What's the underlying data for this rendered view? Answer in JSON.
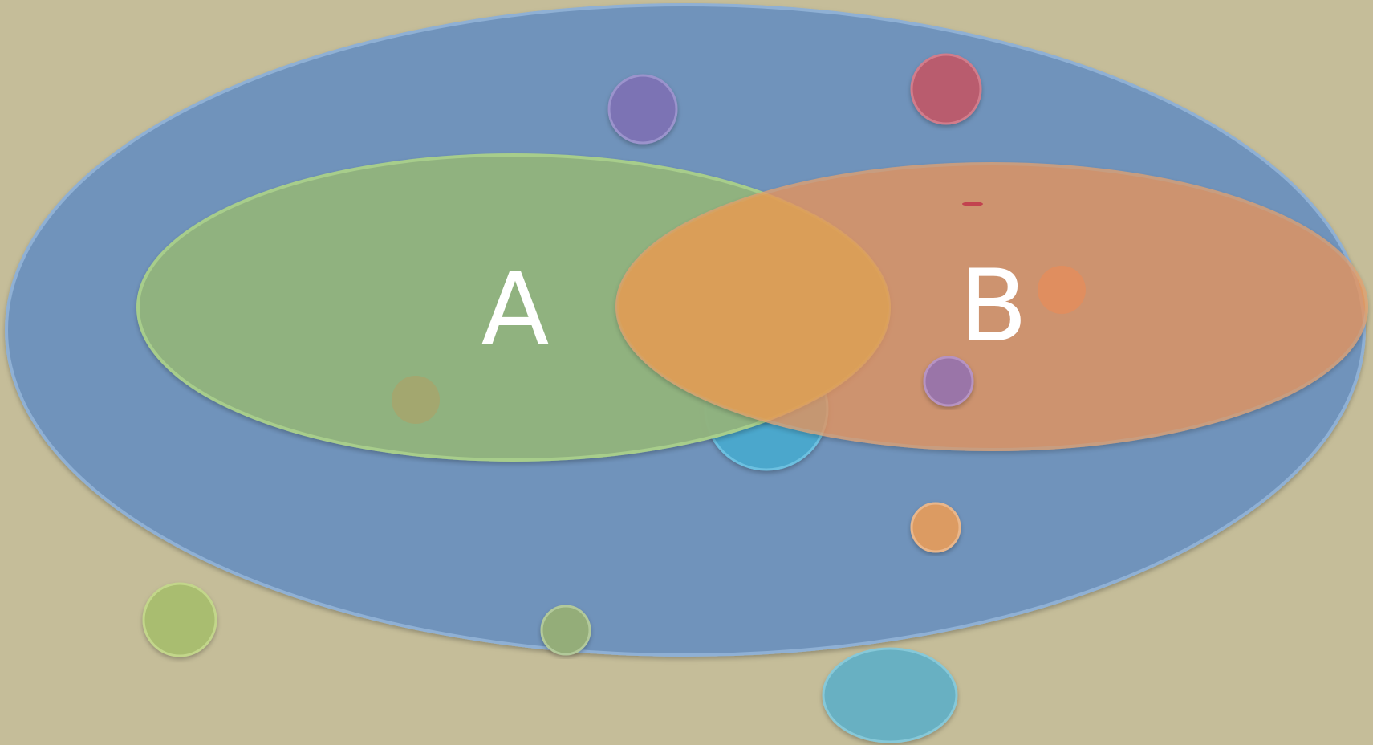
{
  "colors": {
    "background": "#c5bd99",
    "universe": "#6f93bb",
    "universe_edge": "#5a7fa8",
    "set_a": "#92b37e",
    "set_a_edge": "#a9cf8a",
    "set_b": "#e8935a",
    "set_b_edge": "#d9935f",
    "intersection": "#dea351"
  },
  "diagram": {
    "set_a_label": "A",
    "set_b_label": "B"
  },
  "decorations": [
    {
      "name": "purple-bubble-top",
      "color": "#7c73b4"
    },
    {
      "name": "red-bubble-top",
      "color": "#b95c6e"
    },
    {
      "name": "small-red-dot",
      "color": "#c2434f"
    },
    {
      "name": "orange-bubble-in-b",
      "color": "#e58c5a"
    },
    {
      "name": "olive-bubble-in-a",
      "color": "#a8a46b"
    },
    {
      "name": "blue-bubble-center",
      "color": "#4ba7cc"
    },
    {
      "name": "violet-bubble-in-b",
      "color": "#9a74a8"
    },
    {
      "name": "orange-bubble-lower",
      "color": "#dc9b62"
    },
    {
      "name": "lime-bubble-outside",
      "color": "#a9bd70"
    },
    {
      "name": "green-bubble-bottom",
      "color": "#94ad79"
    },
    {
      "name": "teal-bubble-bottom",
      "color": "#67b0c2"
    }
  ]
}
